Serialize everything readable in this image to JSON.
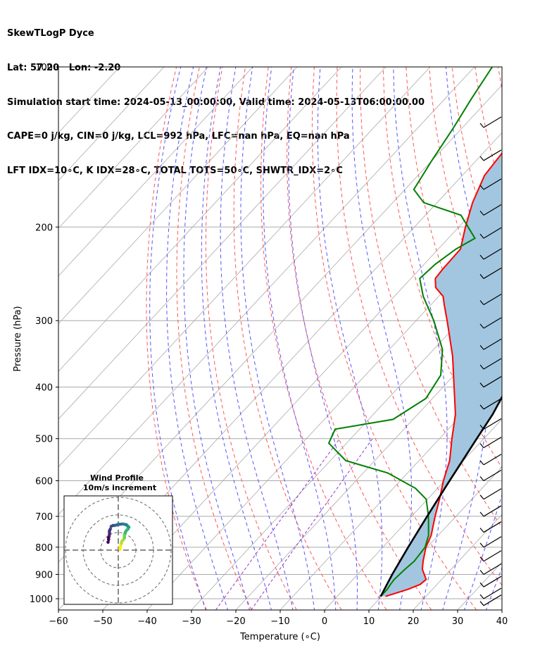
{
  "header": {
    "line1": "SkewTLogP Dyce",
    "line2": "Lat: 57.20   Lon: -2.20",
    "line3": "Simulation start time: 2024-05-13_00:00:00, Valid time: 2024-05-13T06:00:00.00",
    "line4": "CAPE=0 j/kg, CIN=0 j/kg, LCL=992 hPa, LFC=nan hPa, EQ=nan hPa",
    "line5": "LFT IDX=10∘C, K IDX=28∘C, TOTAL TOTS=50∘C, SHWTR_IDX=2∘C"
  },
  "inset": {
    "title_line1": "Wind Profile",
    "title_line2": "10m/s increment"
  },
  "colors": {
    "temperature": "#ff0000",
    "dewpoint": "#008000",
    "parcel": "#000000",
    "cape_fill": "#a2c6df",
    "dry_adiabat": "#ff5555",
    "moist_adiabat": "#5555ff",
    "mixing_ratio": "#9933cc",
    "isotherm": "#aaaaaa",
    "isobar": "#aaaaaa"
  },
  "chart_data": {
    "type": "line",
    "subtype": "skew-t log-p",
    "xlabel": "Temperature (∘C)",
    "ylabel": "Pressure (hPa)",
    "xlim": [
      -60,
      40
    ],
    "ylim": [
      1050,
      100
    ],
    "yscale": "log",
    "grid": true,
    "x_ticks": [
      "−60",
      "−50",
      "−40",
      "−30",
      "−20",
      "−10",
      "0",
      "10",
      "20",
      "30",
      "40"
    ],
    "y_ticks": [
      "100",
      "200",
      "300",
      "400",
      "500",
      "600",
      "700",
      "800",
      "900",
      "1000"
    ],
    "y_tick_values": [
      100,
      200,
      300,
      400,
      500,
      600,
      700,
      800,
      900,
      1000
    ],
    "series": [
      {
        "role": "temperature",
        "p": [
          990,
          960,
          940,
          920,
          880,
          850,
          800,
          760,
          700,
          650,
          600,
          550,
          500,
          450,
          400,
          350,
          300,
          280,
          270,
          260,
          250,
          240,
          220,
          200,
          180,
          160,
          140,
          120,
          110,
          100
        ],
        "t": [
          10.9,
          14.5,
          16.2,
          16.5,
          13.5,
          12.0,
          9.7,
          8.4,
          5.3,
          2.7,
          -0.3,
          -3.1,
          -7.2,
          -11.5,
          -17.5,
          -24.3,
          -33.0,
          -37.0,
          -39.0,
          -42.5,
          -44.5,
          -44.8,
          -45.0,
          -48.5,
          -52.0,
          -55.0,
          -56.0,
          -59.0,
          -59.5,
          -60.5
        ]
      },
      {
        "role": "dewpoint",
        "p": [
          990,
          960,
          940,
          920,
          880,
          850,
          800,
          760,
          700,
          650,
          620,
          580,
          550,
          510,
          480,
          460,
          420,
          380,
          340,
          300,
          270,
          250,
          235,
          220,
          210,
          190,
          180,
          170,
          150,
          130,
          115,
          100
        ],
        "t": [
          9.8,
          9.8,
          9.5,
          9.3,
          9.6,
          10.0,
          9.5,
          7.8,
          3.8,
          -0.3,
          -5.0,
          -14.5,
          -26.5,
          -34.0,
          -35.5,
          -24.5,
          -21.5,
          -23.0,
          -28.0,
          -36.0,
          -43.5,
          -48.0,
          -47.5,
          -46.0,
          -44.0,
          -52.0,
          -63.0,
          -68.0,
          -70.0,
          -72.0,
          -74.0,
          -76.0
        ]
      },
      {
        "role": "parcel",
        "p": [
          990,
          900,
          800,
          700,
          600,
          500,
          450,
          400,
          350,
          300,
          250,
          200,
          170,
          140,
          120,
          100
        ],
        "t": [
          9.8,
          7.8,
          5.7,
          3.5,
          1.1,
          -1.6,
          -3.1,
          -5.5,
          -8.5,
          -12.3,
          -17.0,
          -23.0,
          -27.0,
          -31.5,
          -34.5,
          -37.5
        ]
      }
    ],
    "hodograph": {
      "type": "scatter",
      "ring_increment_ms": 10,
      "rings": 3,
      "colormap": "viridis",
      "u": [
        1,
        1,
        1.2,
        1.5,
        1.8,
        2,
        2.5,
        3,
        3.5,
        3.5,
        3.5,
        4,
        4.5,
        5,
        5.5,
        6,
        5.5,
        5,
        4.5,
        4,
        3,
        2,
        1,
        0,
        -1,
        -2,
        -3,
        -4,
        -4.5,
        -5,
        -5,
        -5,
        -5.2,
        -5.5,
        -5.5,
        -5.8
      ],
      "v": [
        0.5,
        1,
        2,
        3,
        4,
        5,
        5.5,
        6,
        7,
        8,
        9,
        10,
        11,
        11.5,
        12,
        13,
        13.5,
        14,
        14.5,
        14.5,
        14.8,
        14.8,
        14.7,
        14.6,
        14.3,
        14,
        14,
        13.5,
        12,
        11,
        10,
        9,
        8,
        7,
        6,
        4.5
      ]
    }
  }
}
